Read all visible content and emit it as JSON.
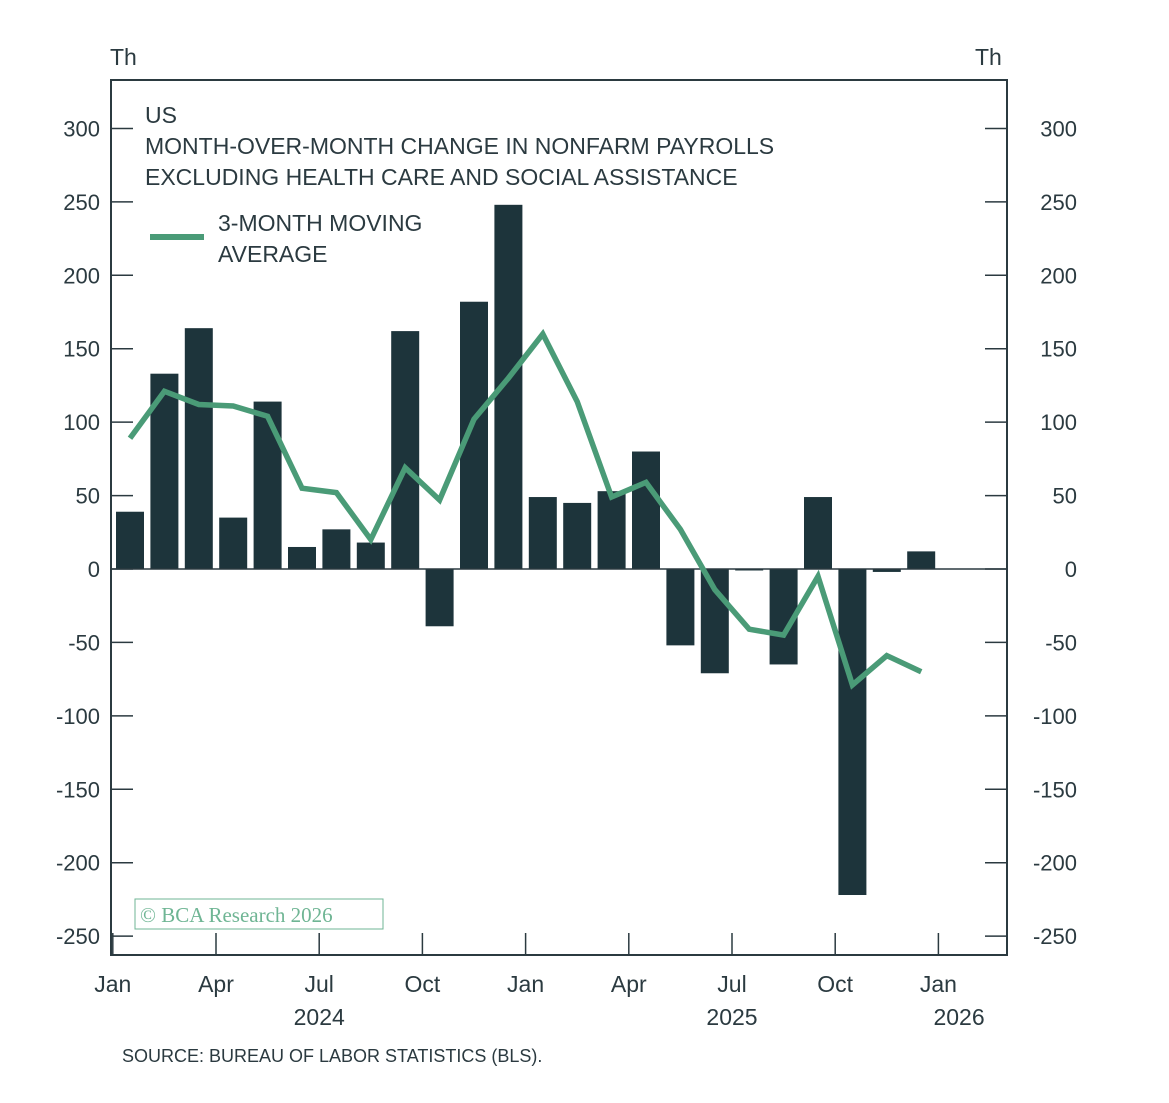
{
  "colors": {
    "bar": "#1d343b",
    "line": "#4a9b77",
    "axis": "#2b3a40",
    "watermark": "#6fb594"
  },
  "chart_data": {
    "type": "bar",
    "units_left": "Th",
    "units_right": "Th",
    "title_lines": [
      "US",
      "MONTH-OVER-MONTH CHANGE IN NONFARM PAYROLLS",
      "EXCLUDING HEALTH CARE AND SOCIAL ASSISTANCE"
    ],
    "legend": {
      "line1": "3-MONTH MOVING",
      "line2": "AVERAGE"
    },
    "watermark": "© BCA Research 2026",
    "source": "SOURCE: BUREAU OF LABOR STATISTICS (BLS).",
    "ylim": [
      -260,
      335
    ],
    "yticks": [
      300,
      250,
      200,
      150,
      100,
      50,
      0,
      -50,
      -100,
      -150,
      -200,
      -250
    ],
    "xticks": [
      {
        "label": "Jan",
        "index": 0
      },
      {
        "label": "Apr",
        "index": 3
      },
      {
        "label": "Jul",
        "index": 6
      },
      {
        "label": "Oct",
        "index": 9
      },
      {
        "label": "Jan",
        "index": 12
      },
      {
        "label": "Apr",
        "index": 15
      },
      {
        "label": "Jul",
        "index": 18
      },
      {
        "label": "Oct",
        "index": 21
      },
      {
        "label": "Jan",
        "index": 24
      }
    ],
    "year_labels": [
      {
        "label": "2024",
        "index": 6
      },
      {
        "label": "2025",
        "index": 18
      },
      {
        "label": "2026",
        "index": 24.6
      }
    ],
    "categories": [
      "Jan 2024",
      "Feb 2024",
      "Mar 2024",
      "Apr 2024",
      "May 2024",
      "Jun 2024",
      "Jul 2024",
      "Aug 2024",
      "Sep 2024",
      "Oct 2024",
      "Nov 2024",
      "Dec 2024",
      "Jan 2025",
      "Feb 2025",
      "Mar 2025",
      "Apr 2025",
      "May 2025",
      "Jun 2025",
      "Jul 2025",
      "Aug 2025",
      "Sep 2025",
      "Oct 2025",
      "Nov 2025",
      "Dec 2025"
    ],
    "series": [
      {
        "name": "Month-over-month change",
        "type": "bar",
        "values": [
          39,
          133,
          164,
          35,
          114,
          15,
          27,
          18,
          162,
          -39,
          182,
          248,
          49,
          45,
          53,
          80,
          -52,
          -71,
          0,
          -65,
          49,
          -222,
          -2,
          12
        ]
      },
      {
        "name": "3-month moving average",
        "type": "line",
        "values": [
          89,
          121,
          112,
          111,
          104,
          55,
          52,
          20,
          69,
          47,
          102,
          130,
          160,
          114,
          49,
          59,
          27,
          -14,
          -41,
          -45,
          -5,
          -79,
          -59,
          -70
        ]
      }
    ]
  }
}
